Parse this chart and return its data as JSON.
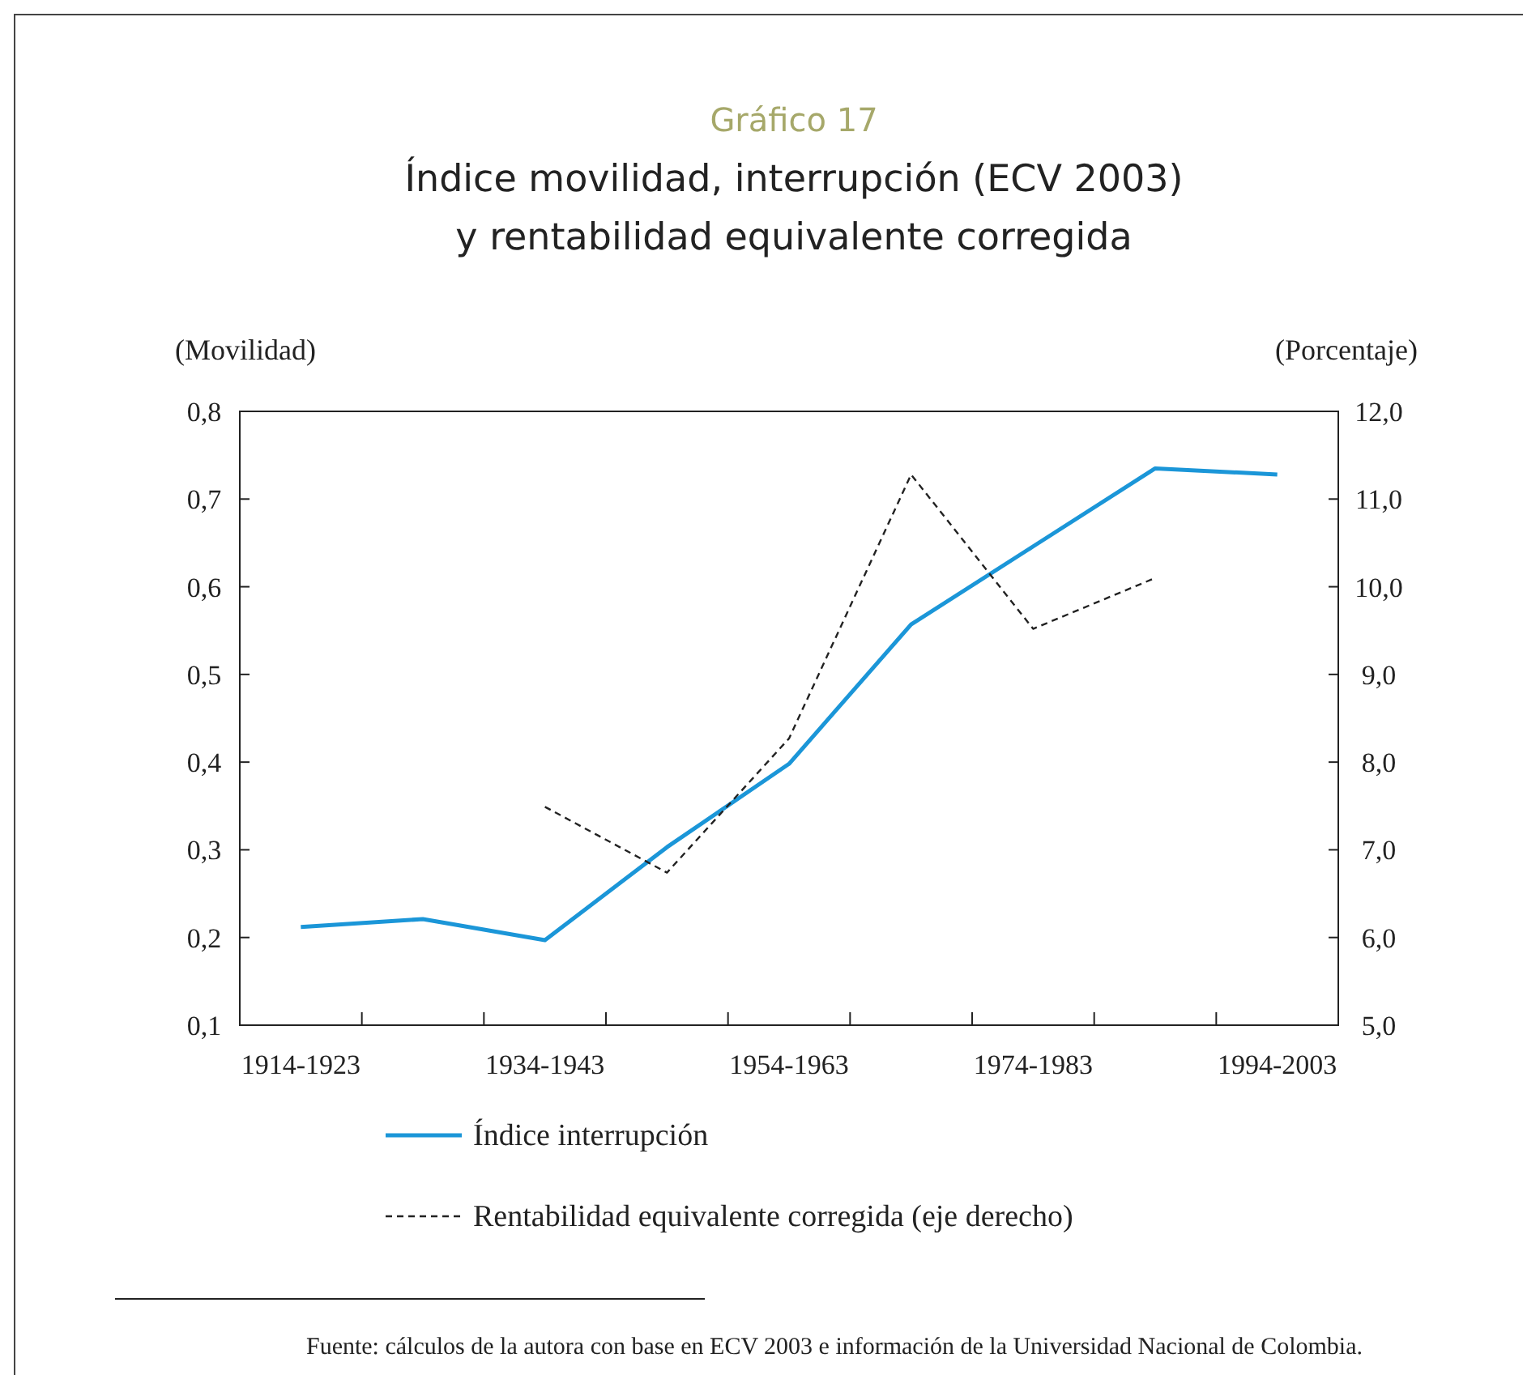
{
  "chart_data": {
    "type": "line",
    "title": "Gráfico 17",
    "subtitle": "Índice movilidad, interrupción (ECV 2003)\ny rentabilidad equivalente corregida",
    "ylabel": "(Movilidad)",
    "y2label": "(Porcentaje)",
    "categories": [
      "1914-1923",
      null,
      "1934-1943",
      null,
      "1954-1963",
      null,
      "1974-1983",
      null,
      "1994-2003"
    ],
    "series": [
      {
        "name": "Índice interrupción",
        "color": "#1b96d8",
        "line_style": "solid",
        "values": [
          0.212,
          0.221,
          0.197,
          0.303,
          0.398,
          0.557,
          0.646,
          0.735,
          0.728
        ]
      },
      {
        "name": "Rentabilidad equivalente corregida (eje derecho)",
        "color": "#222222",
        "line_style": "dashed",
        "axis": "y2",
        "values": [
          null,
          null,
          7.49,
          6.74,
          8.27,
          11.28,
          9.52,
          10.1,
          null
        ]
      }
    ],
    "ylim": [
      0.1,
      0.8
    ],
    "yticks": [
      {
        "value": 0.1,
        "label": "0,1"
      },
      {
        "value": 0.2,
        "label": "0,2"
      },
      {
        "value": 0.3,
        "label": "0,3"
      },
      {
        "value": 0.4,
        "label": "0,4"
      },
      {
        "value": 0.5,
        "label": "0,5"
      },
      {
        "value": 0.6,
        "label": "0,6"
      },
      {
        "value": 0.7,
        "label": "0,7"
      },
      {
        "value": 0.8,
        "label": "0,8"
      }
    ],
    "y2lim": [
      5,
      12
    ],
    "y2ticks": [
      {
        "value": 5,
        "label": "5,0"
      },
      {
        "value": 6,
        "label": "6,0"
      },
      {
        "value": 7,
        "label": "7,0"
      },
      {
        "value": 8,
        "label": "8,0"
      },
      {
        "value": 9,
        "label": "9,0"
      },
      {
        "value": 10,
        "label": "10,0"
      },
      {
        "value": 11,
        "label": "11,0"
      },
      {
        "value": 12,
        "label": "12,0"
      }
    ],
    "grid": false,
    "legend": "bottom",
    "marker": "none",
    "annotations": [
      "Fuente: cálculos de la autora con base en ECV 2003 e información de la Universidad Nacional de Colombia."
    ]
  }
}
